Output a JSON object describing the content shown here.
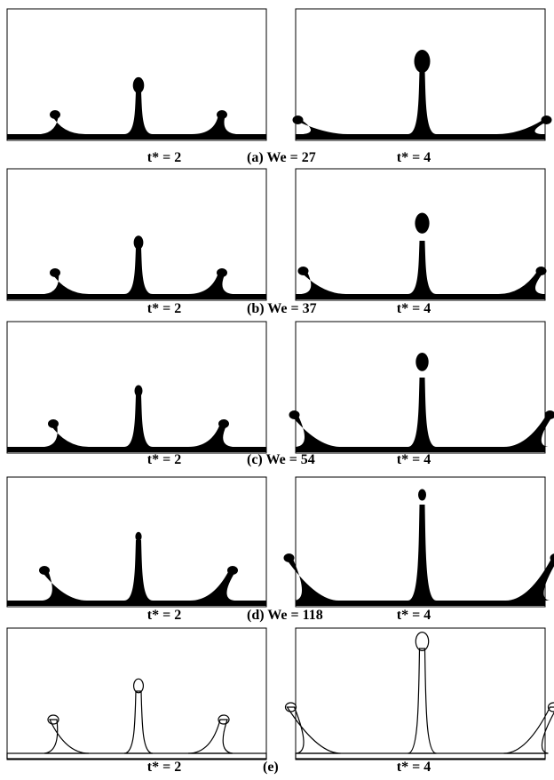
{
  "panels": [
    {
      "left_label": "t* = 2",
      "caption": "(a) We = 27",
      "right_label": "t* = 4"
    },
    {
      "left_label": "t* = 2",
      "caption": "(b) We = 37",
      "right_label": "t* = 4"
    },
    {
      "left_label": "t* = 2",
      "caption": "(c) We = 54",
      "right_label": "t* = 4"
    },
    {
      "left_label": "t* = 2",
      "caption": "(d) We = 118",
      "right_label": "t* = 4"
    },
    {
      "left_label": "t* = 2",
      "caption": "(e)",
      "right_label": "t* = 4"
    }
  ]
}
